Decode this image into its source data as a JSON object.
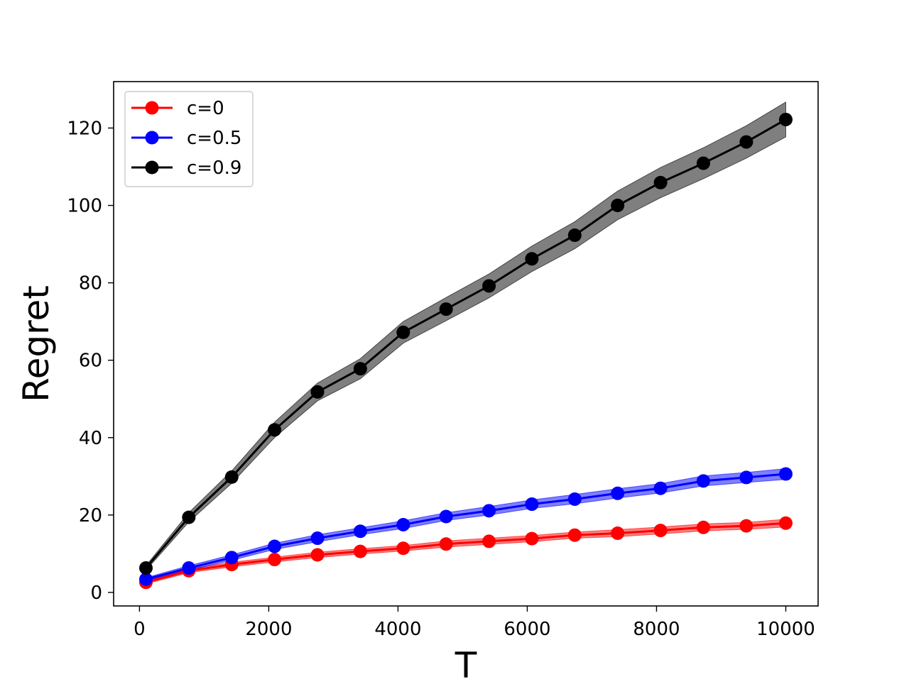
{
  "chart_data": {
    "type": "line",
    "title": "",
    "xlabel": "T",
    "ylabel": "Regret",
    "xlim": [
      -400,
      10500
    ],
    "ylim": [
      -3.5,
      132
    ],
    "xticks": [
      0,
      2000,
      4000,
      6000,
      8000,
      10000
    ],
    "yticks": [
      0,
      20,
      40,
      60,
      80,
      100,
      120
    ],
    "legend_position": "top-left",
    "grid": false,
    "x": [
      100,
      763,
      1427,
      2090,
      2754,
      3417,
      4081,
      4744,
      5408,
      6071,
      6735,
      7398,
      8062,
      8725,
      9389,
      10000
    ],
    "series": [
      {
        "name": "c=0",
        "color": "#ff0000",
        "values": [
          2.6,
          5.6,
          7.2,
          8.5,
          9.7,
          10.6,
          11.4,
          12.5,
          13.2,
          13.9,
          14.8,
          15.3,
          16.0,
          16.8,
          17.2,
          17.9
        ],
        "band": [
          0.4,
          0.5,
          0.6,
          0.6,
          0.7,
          0.7,
          0.7,
          0.8,
          0.8,
          0.8,
          0.8,
          0.9,
          0.9,
          0.9,
          0.9,
          1.0
        ]
      },
      {
        "name": "c=0.5",
        "color": "#0000ff",
        "values": [
          3.4,
          6.3,
          9.0,
          11.9,
          14.0,
          15.8,
          17.5,
          19.6,
          21.1,
          22.8,
          24.1,
          25.6,
          26.9,
          28.8,
          29.7,
          30.6
        ],
        "band": [
          0.4,
          0.6,
          0.7,
          0.8,
          0.9,
          0.9,
          1.0,
          1.0,
          1.1,
          1.1,
          1.2,
          1.2,
          1.2,
          1.3,
          1.3,
          1.4
        ]
      },
      {
        "name": "c=0.9",
        "color": "#000000",
        "values": [
          6.3,
          19.4,
          29.8,
          42.0,
          51.8,
          57.8,
          67.2,
          73.2,
          79.2,
          86.2,
          92.3,
          100.0,
          105.9,
          110.9,
          116.4,
          122.2
        ],
        "band": [
          0.6,
          1.2,
          1.6,
          2.0,
          2.3,
          2.6,
          2.8,
          3.0,
          3.1,
          3.3,
          3.5,
          3.7,
          3.9,
          4.0,
          4.2,
          4.5
        ]
      }
    ]
  }
}
